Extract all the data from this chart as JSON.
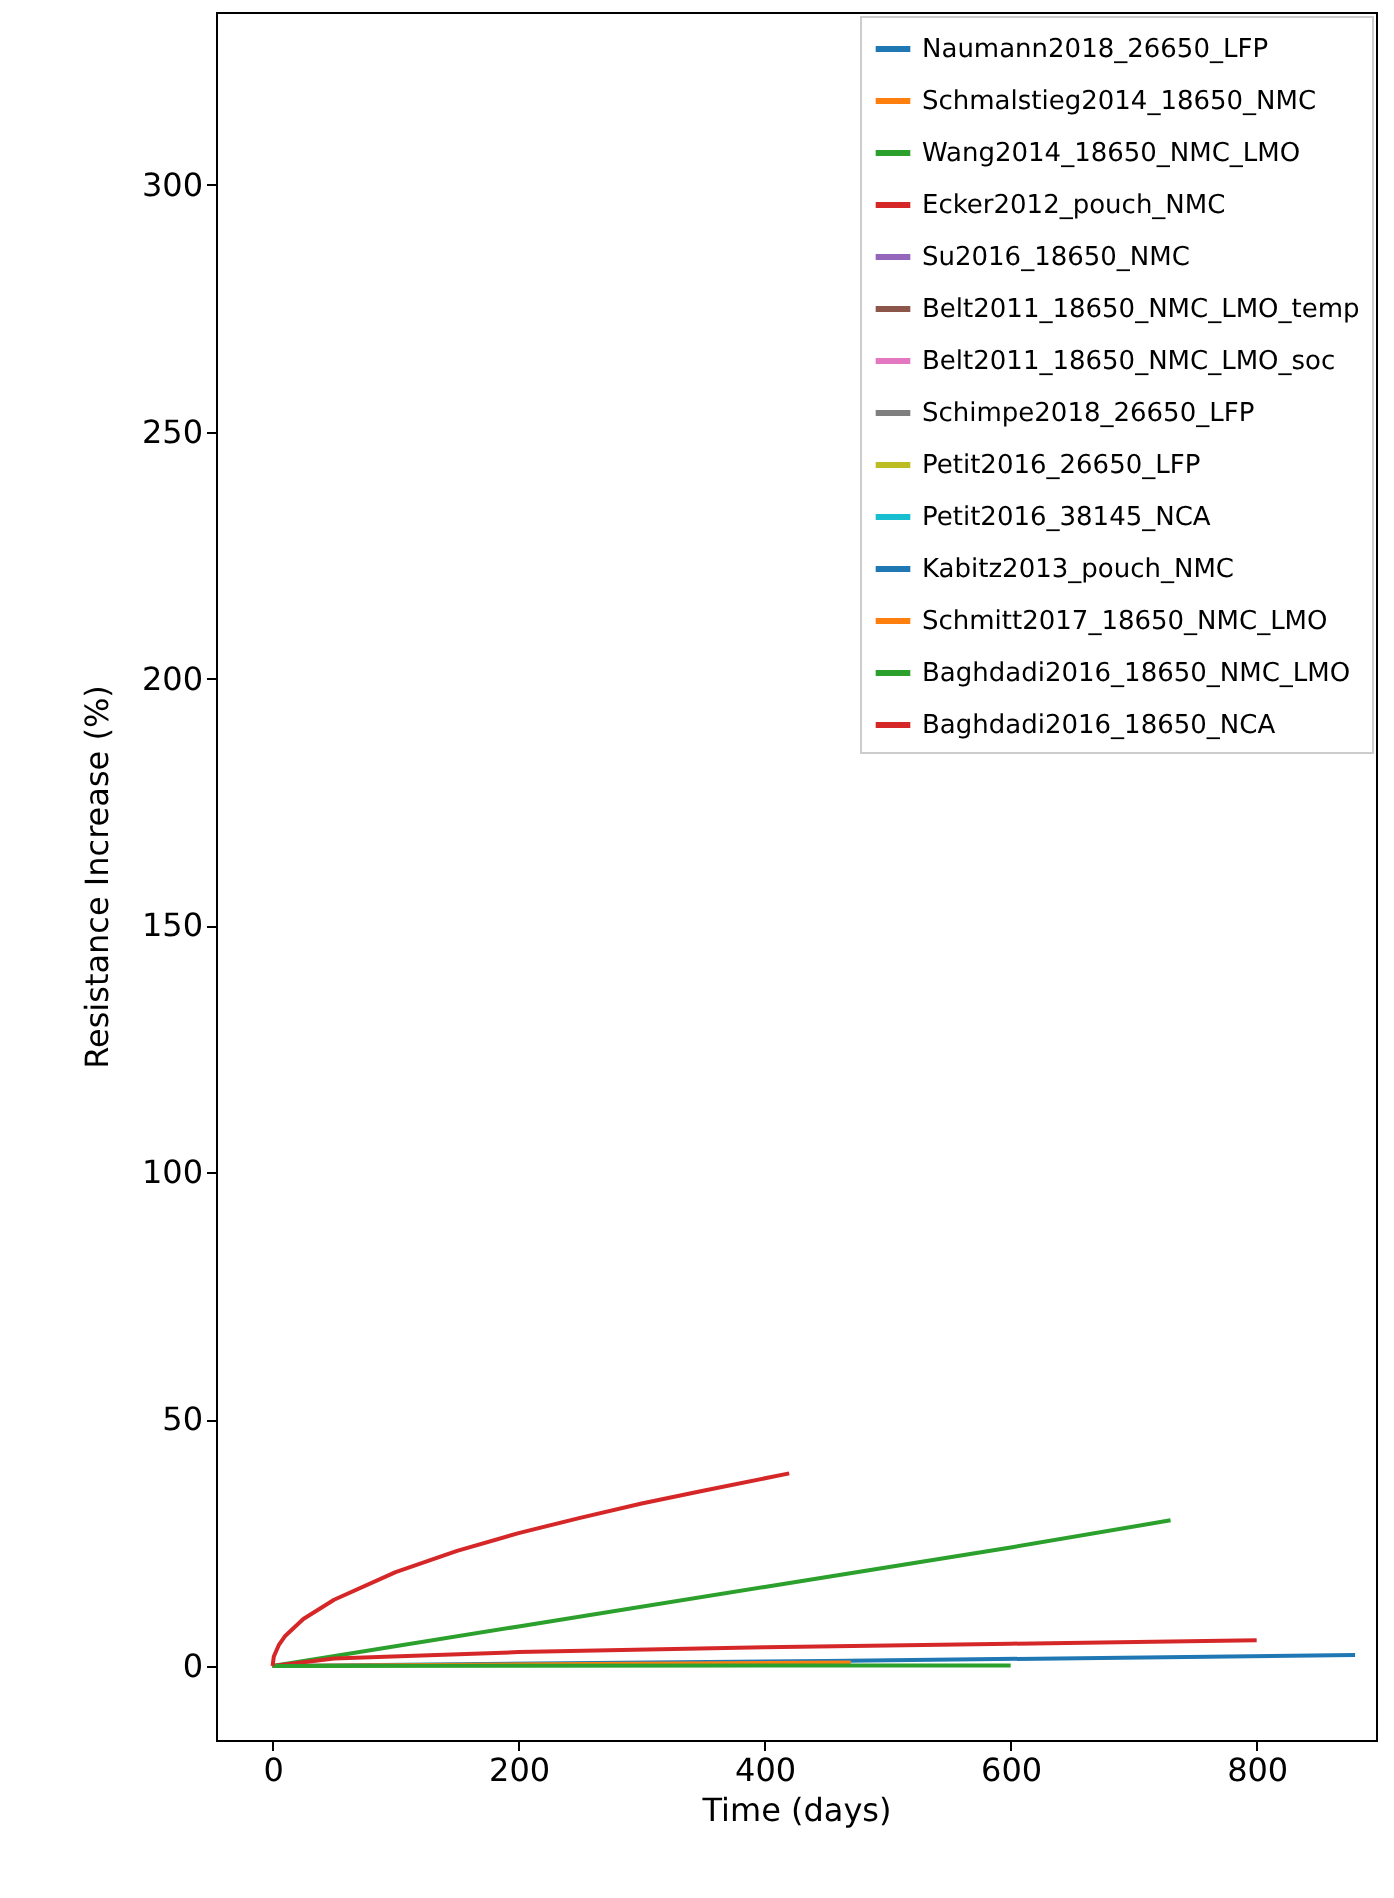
{
  "chart_data": {
    "type": "line",
    "xlabel": "Time (days)",
    "ylabel": "Resistance Increase (%)",
    "xlim": [
      -46,
      897
    ],
    "ylim": [
      -15,
      335
    ],
    "xticks": [
      0,
      200,
      400,
      600,
      800
    ],
    "yticks": [
      0,
      50,
      100,
      150,
      200,
      250,
      300
    ],
    "grid": false,
    "legend": "top right",
    "line_style": "solid",
    "series": [
      {
        "name": "Naumann2018_26650_LFP",
        "color": "#1f77b4",
        "x": [
          0,
          450,
          880
        ],
        "values": [
          0,
          1,
          2.2
        ]
      },
      {
        "name": "Schmalstieg2014_18650_NMC",
        "color": "#ff7f0e",
        "x": [
          0,
          470
        ],
        "values": [
          0,
          0.7
        ]
      },
      {
        "name": "Wang2014_18650_NMC_LMO",
        "color": "#2ca02c",
        "x": [
          0,
          200,
          400,
          600,
          730
        ],
        "values": [
          0,
          8,
          16,
          24,
          29.5
        ]
      },
      {
        "name": "Ecker2012_pouch_NMC",
        "color": "#d62728",
        "x": [
          0,
          50,
          200,
          400,
          600,
          800
        ],
        "values": [
          0,
          1.5,
          2.8,
          3.8,
          4.5,
          5.2
        ]
      },
      {
        "name": "Su2016_18650_NMC",
        "color": "#9467bd"
      },
      {
        "name": "Belt2011_18650_NMC_LMO_temp",
        "color": "#8c564b"
      },
      {
        "name": "Belt2011_18650_NMC_LMO_soc",
        "color": "#e377c2"
      },
      {
        "name": "Schimpe2018_26650_LFP",
        "color": "#7f7f7f"
      },
      {
        "name": "Petit2016_26650_LFP",
        "color": "#bcbd22"
      },
      {
        "name": "Petit2016_38145_NCA",
        "color": "#17becf"
      },
      {
        "name": "Kabitz2013_pouch_NMC",
        "color": "#1f77b4"
      },
      {
        "name": "Schmitt2017_18650_NMC_LMO",
        "color": "#ff7f0e"
      },
      {
        "name": "Baghdadi2016_18650_NMC_LMO",
        "color": "#2ca02c",
        "x": [
          0,
          600
        ],
        "values": [
          0,
          0.1
        ]
      },
      {
        "name": "Baghdadi2016_18650_NCA",
        "color": "#d62728",
        "x": [
          0,
          1,
          5,
          10,
          25,
          50,
          100,
          150,
          200,
          250,
          300,
          350,
          420
        ],
        "values": [
          0,
          1.9,
          4.2,
          6,
          9.5,
          13.4,
          19,
          23.3,
          26.9,
          30,
          32.9,
          35.5,
          39
        ]
      }
    ]
  }
}
